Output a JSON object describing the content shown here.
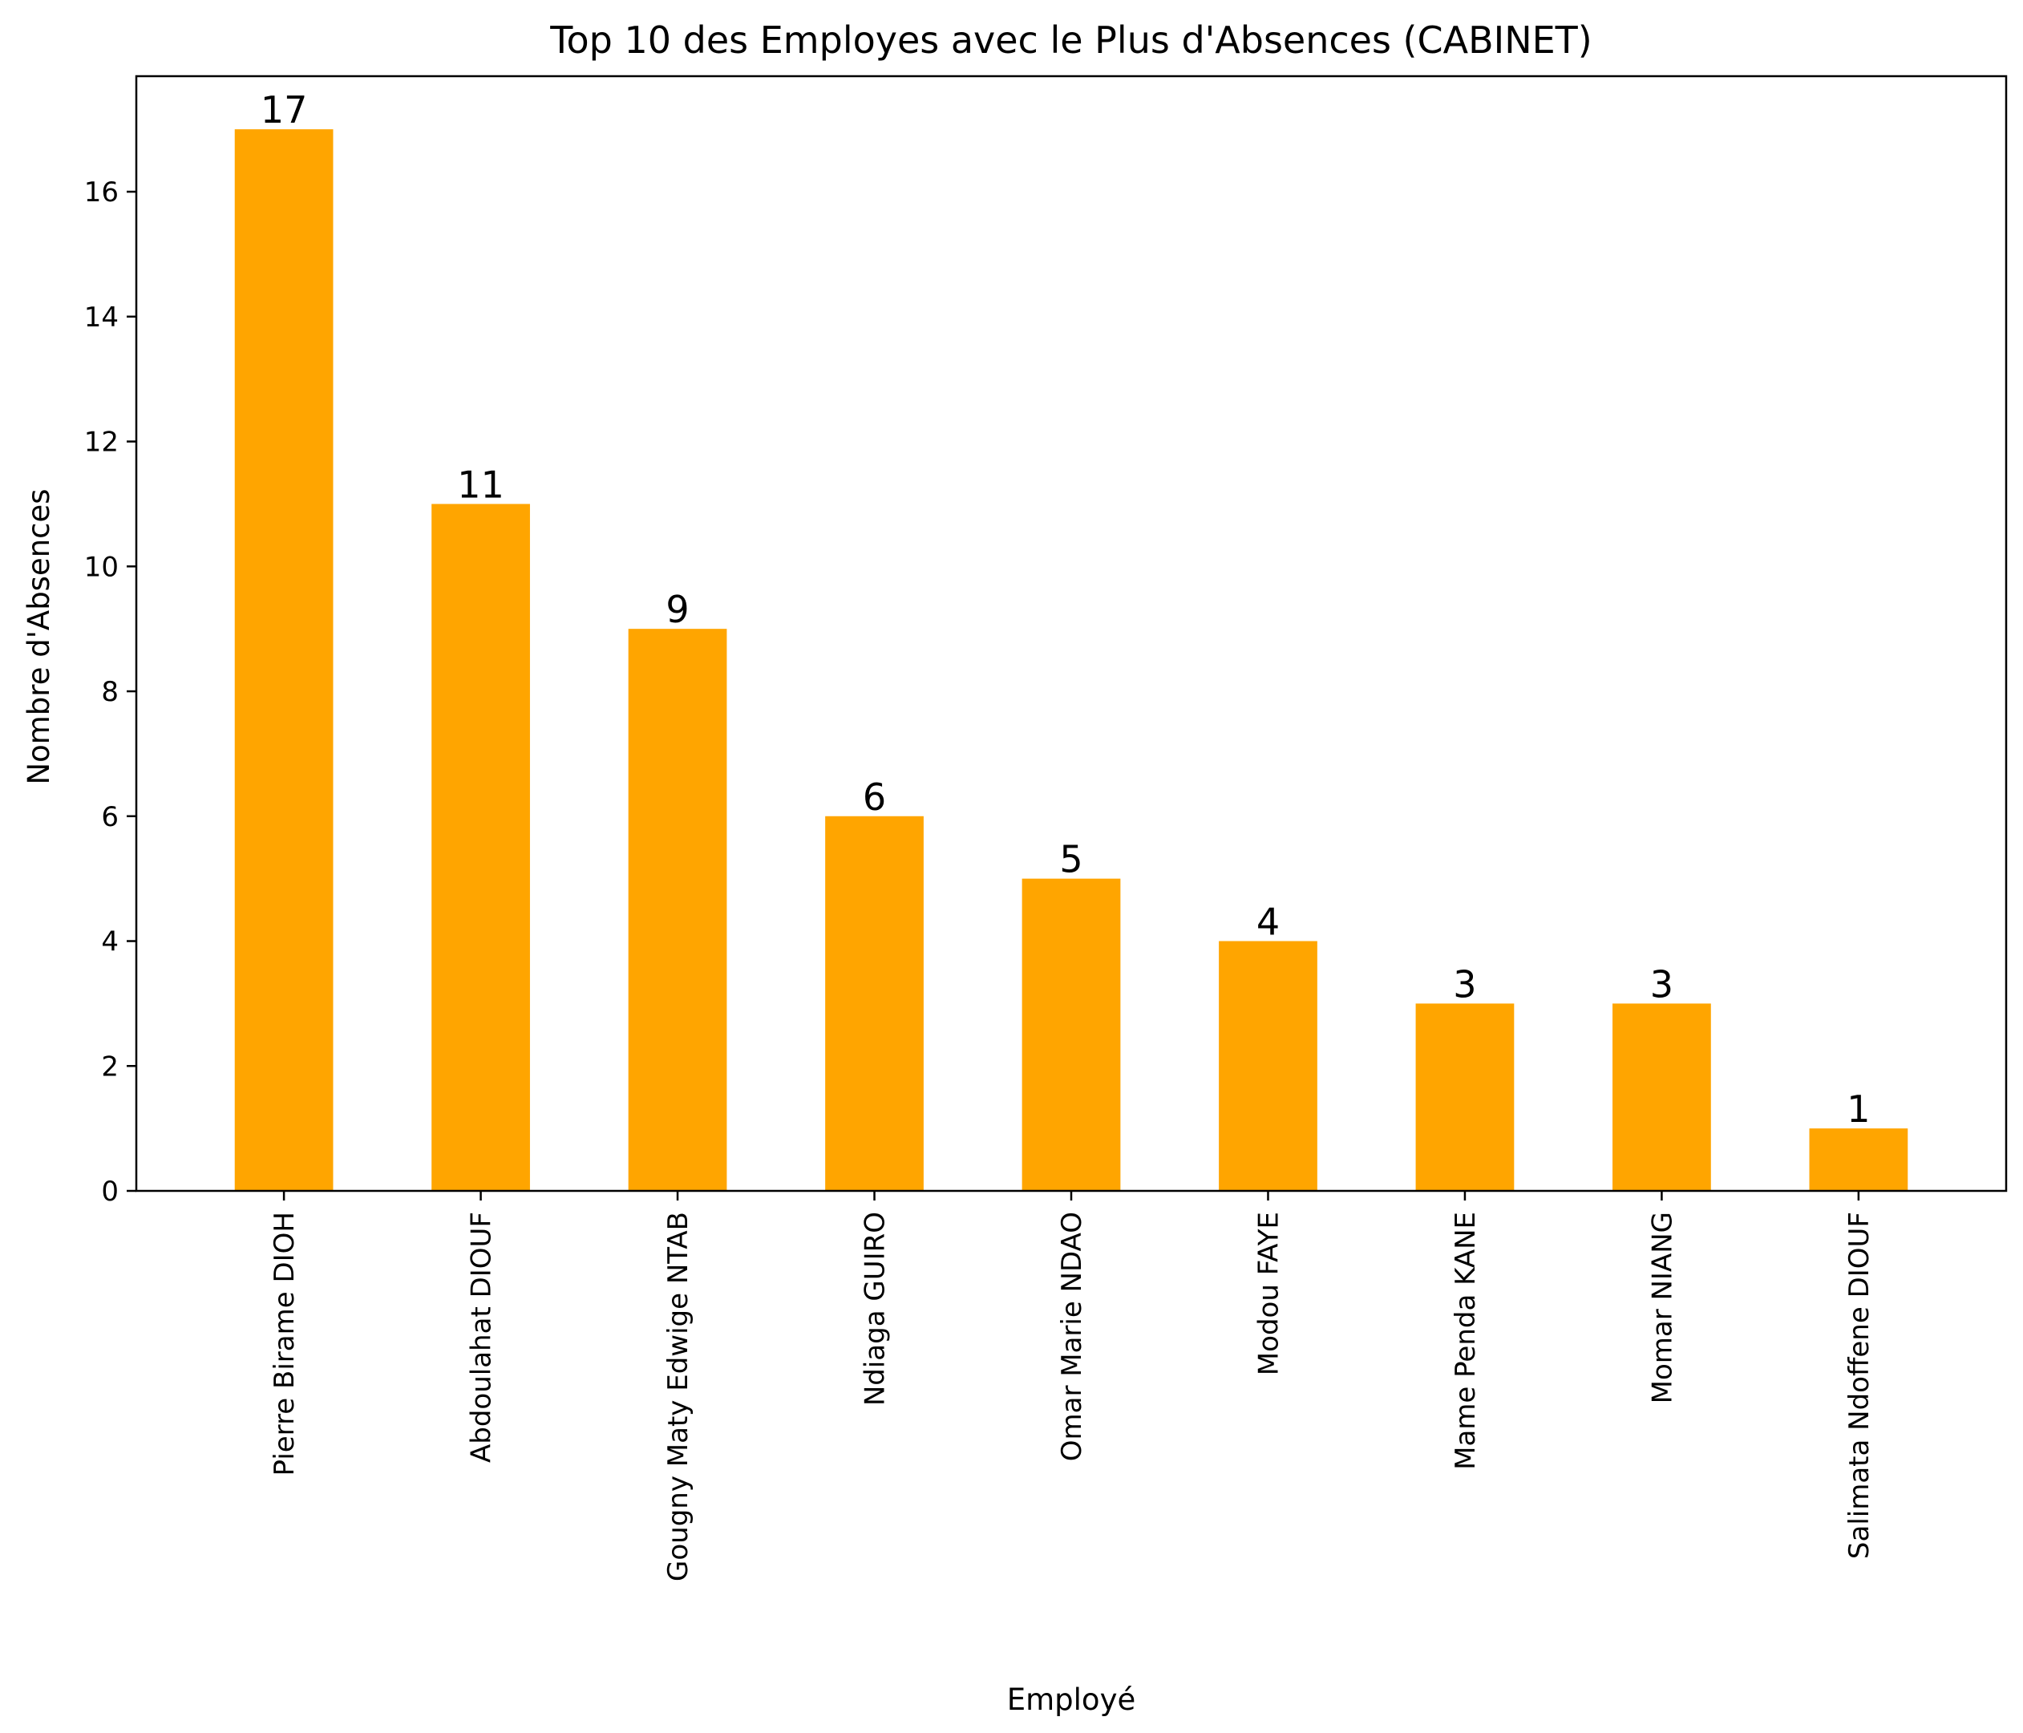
{
  "chart_data": {
    "type": "bar",
    "title": "Top 10 des Employes avec le Plus d'Absences (CABINET)",
    "xlabel": "Employé",
    "ylabel": "Nombre d'Absences",
    "categories": [
      "Pierre Birame DIOH",
      "Abdoulahat DIOUF",
      "Gougny Maty Edwige NTAB",
      "Ndiaga GUIRO",
      "Omar Marie NDAO",
      "Modou FAYE",
      "Mame Penda KANE",
      "Momar NIANG",
      "Salimata Ndoffene DIOUF"
    ],
    "values": [
      17,
      11,
      9,
      6,
      5,
      4,
      3,
      3,
      1
    ],
    "data_labels": [
      "17",
      "11",
      "9",
      "6",
      "5",
      "4",
      "3",
      "3",
      "1"
    ],
    "ylim": [
      0,
      17.85
    ],
    "yticks": [
      0,
      2,
      4,
      6,
      8,
      10,
      12,
      14,
      16
    ],
    "bar_color": "#ffa500",
    "grid": false,
    "legend": "none"
  }
}
